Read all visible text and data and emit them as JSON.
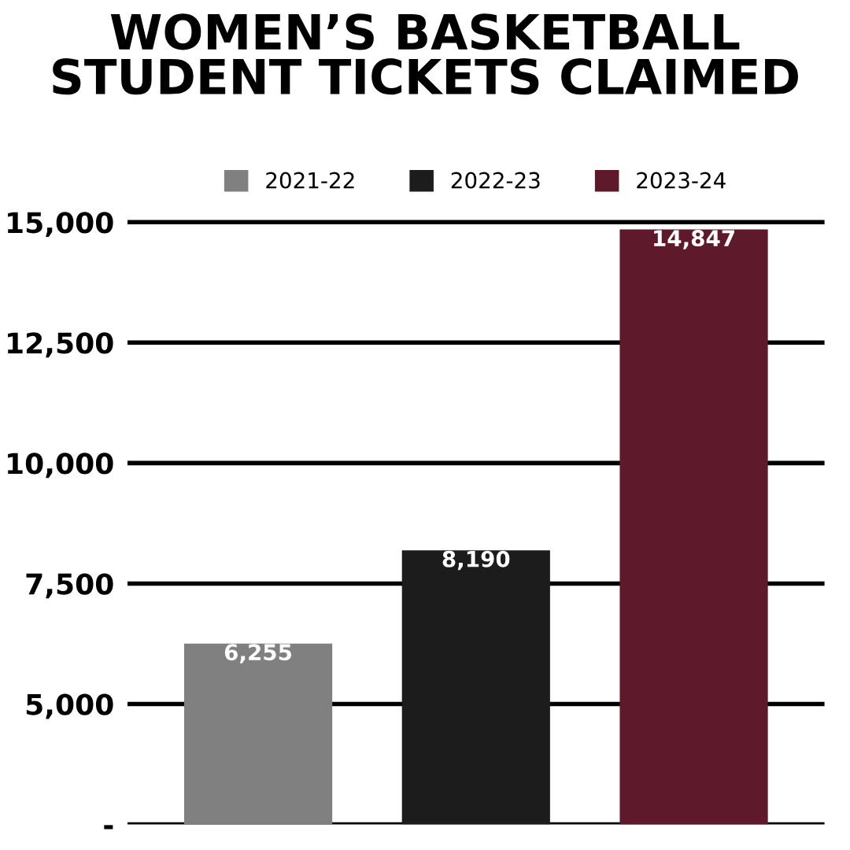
{
  "chart_data": {
    "type": "bar",
    "title": "WOMEN’S BASKETBALL\nSTUDENT TICKETS CLAIMED",
    "categories": [
      null,
      null,
      null
    ],
    "series": [
      {
        "name": "2021-22",
        "color": "#808080",
        "values": [
          6255,
          null,
          null
        ],
        "value_labels": [
          "6,255",
          null,
          null
        ]
      },
      {
        "name": "2022-23",
        "color": "#1c1c1c",
        "values": [
          null,
          8190,
          null
        ],
        "value_labels": [
          null,
          "8,190",
          null
        ]
      },
      {
        "name": "2023-24",
        "color": "#5e1a2b",
        "values": [
          null,
          null,
          14847
        ],
        "value_labels": [
          null,
          null,
          "14,847"
        ]
      }
    ],
    "ylim": [
      2500,
      15000
    ],
    "yticks": [
      {
        "value": 2500,
        "label": "-"
      },
      {
        "value": 5000,
        "label": "5,000"
      },
      {
        "value": 7500,
        "label": "7,500"
      },
      {
        "value": 10000,
        "label": "10,000"
      },
      {
        "value": 12500,
        "label": "12,500"
      },
      {
        "value": 15000,
        "label": "15,000"
      }
    ],
    "grid": "y",
    "legend": "top"
  }
}
